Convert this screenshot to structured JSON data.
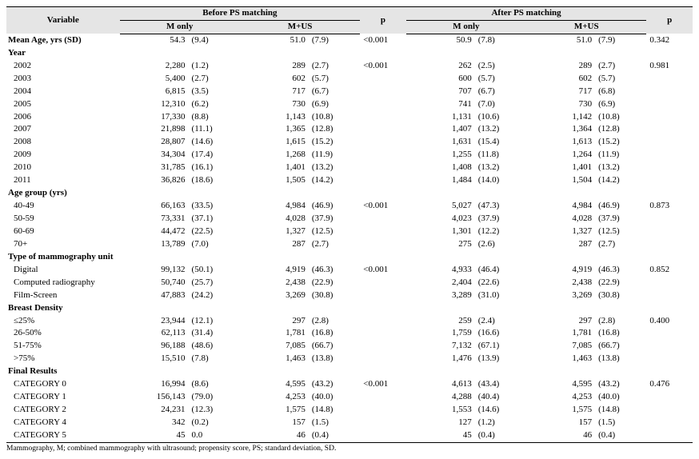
{
  "header": {
    "variable": "Variable",
    "before": "Before PS matching",
    "after": "After PS matching",
    "m_only": "M only",
    "m_us": "M+US",
    "p": "p"
  },
  "rows": [
    {
      "type": "data",
      "bold": true,
      "label": "Mean Age, yrs (SD)",
      "b_m_n": "54.3",
      "b_m_p": "(9.4)",
      "b_u_n": "51.0",
      "b_u_p": "(7.9)",
      "p1": "<0.001",
      "a_m_n": "50.9",
      "a_m_p": "(7.8)",
      "a_u_n": "51.0",
      "a_u_p": "(7.9)",
      "p2": "0.342"
    },
    {
      "type": "section",
      "label": "Year"
    },
    {
      "type": "data",
      "label": "2002",
      "b_m_n": "2,280",
      "b_m_p": "(1.2)",
      "b_u_n": "289",
      "b_u_p": "(2.7)",
      "p1": "<0.001",
      "a_m_n": "262",
      "a_m_p": "(2.5)",
      "a_u_n": "289",
      "a_u_p": "(2.7)",
      "p2": "0.981"
    },
    {
      "type": "data",
      "label": "2003",
      "b_m_n": "5,400",
      "b_m_p": "(2.7)",
      "b_u_n": "602",
      "b_u_p": "(5.7)",
      "p1": "",
      "a_m_n": "600",
      "a_m_p": "(5.7)",
      "a_u_n": "602",
      "a_u_p": "(5.7)",
      "p2": ""
    },
    {
      "type": "data",
      "label": "2004",
      "b_m_n": "6,815",
      "b_m_p": "(3.5)",
      "b_u_n": "717",
      "b_u_p": "(6.7)",
      "p1": "",
      "a_m_n": "707",
      "a_m_p": "(6.7)",
      "a_u_n": "717",
      "a_u_p": "(6.8)",
      "p2": ""
    },
    {
      "type": "data",
      "label": "2005",
      "b_m_n": "12,310",
      "b_m_p": "(6.2)",
      "b_u_n": "730",
      "b_u_p": "(6.9)",
      "p1": "",
      "a_m_n": "741",
      "a_m_p": "(7.0)",
      "a_u_n": "730",
      "a_u_p": "(6.9)",
      "p2": ""
    },
    {
      "type": "data",
      "label": "2006",
      "b_m_n": "17,330",
      "b_m_p": "(8.8)",
      "b_u_n": "1,143",
      "b_u_p": "(10.8)",
      "p1": "",
      "a_m_n": "1,131",
      "a_m_p": "(10.6)",
      "a_u_n": "1,142",
      "a_u_p": "(10.8)",
      "p2": ""
    },
    {
      "type": "data",
      "label": "2007",
      "b_m_n": "21,898",
      "b_m_p": "(11.1)",
      "b_u_n": "1,365",
      "b_u_p": "(12.8)",
      "p1": "",
      "a_m_n": "1,407",
      "a_m_p": "(13.2)",
      "a_u_n": "1,364",
      "a_u_p": "(12.8)",
      "p2": ""
    },
    {
      "type": "data",
      "label": "2008",
      "b_m_n": "28,807",
      "b_m_p": "(14.6)",
      "b_u_n": "1,615",
      "b_u_p": "(15.2)",
      "p1": "",
      "a_m_n": "1,631",
      "a_m_p": "(15.4)",
      "a_u_n": "1,613",
      "a_u_p": "(15.2)",
      "p2": ""
    },
    {
      "type": "data",
      "label": "2009",
      "b_m_n": "34,304",
      "b_m_p": "(17.4)",
      "b_u_n": "1,268",
      "b_u_p": "(11.9)",
      "p1": "",
      "a_m_n": "1,255",
      "a_m_p": "(11.8)",
      "a_u_n": "1,264",
      "a_u_p": "(11.9)",
      "p2": ""
    },
    {
      "type": "data",
      "label": "2010",
      "b_m_n": "31,785",
      "b_m_p": "(16.1)",
      "b_u_n": "1,401",
      "b_u_p": "(13.2)",
      "p1": "",
      "a_m_n": "1,408",
      "a_m_p": "(13.2)",
      "a_u_n": "1,401",
      "a_u_p": "(13.2)",
      "p2": ""
    },
    {
      "type": "data",
      "label": "2011",
      "b_m_n": "36,826",
      "b_m_p": "(18.6)",
      "b_u_n": "1,505",
      "b_u_p": "(14.2)",
      "p1": "",
      "a_m_n": "1,484",
      "a_m_p": "(14.0)",
      "a_u_n": "1,504",
      "a_u_p": "(14.2)",
      "p2": ""
    },
    {
      "type": "section",
      "label": "Age group (yrs)"
    },
    {
      "type": "data",
      "label": "40-49",
      "b_m_n": "66,163",
      "b_m_p": "(33.5)",
      "b_u_n": "4,984",
      "b_u_p": "(46.9)",
      "p1": "<0.001",
      "a_m_n": "5,027",
      "a_m_p": "(47.3)",
      "a_u_n": "4,984",
      "a_u_p": "(46.9)",
      "p2": "0.873"
    },
    {
      "type": "data",
      "label": "50-59",
      "b_m_n": "73,331",
      "b_m_p": "(37.1)",
      "b_u_n": "4,028",
      "b_u_p": "(37.9)",
      "p1": "",
      "a_m_n": "4,023",
      "a_m_p": "(37.9)",
      "a_u_n": "4,028",
      "a_u_p": "(37.9)",
      "p2": ""
    },
    {
      "type": "data",
      "label": "60-69",
      "b_m_n": "44,472",
      "b_m_p": "(22.5)",
      "b_u_n": "1,327",
      "b_u_p": "(12.5)",
      "p1": "",
      "a_m_n": "1,301",
      "a_m_p": "(12.2)",
      "a_u_n": "1,327",
      "a_u_p": "(12.5)",
      "p2": ""
    },
    {
      "type": "data",
      "label": "70+",
      "b_m_n": "13,789",
      "b_m_p": "(7.0)",
      "b_u_n": "287",
      "b_u_p": "(2.7)",
      "p1": "",
      "a_m_n": "275",
      "a_m_p": "(2.6)",
      "a_u_n": "287",
      "a_u_p": "(2.7)",
      "p2": ""
    },
    {
      "type": "section",
      "label": "Type of mammography unit"
    },
    {
      "type": "data",
      "label": "Digital",
      "b_m_n": "99,132",
      "b_m_p": "(50.1)",
      "b_u_n": "4,919",
      "b_u_p": "(46.3)",
      "p1": "<0.001",
      "a_m_n": "4,933",
      "a_m_p": "(46.4)",
      "a_u_n": "4,919",
      "a_u_p": "(46.3)",
      "p2": "0.852"
    },
    {
      "type": "data",
      "label": "Computed radiography",
      "b_m_n": "50,740",
      "b_m_p": "(25.7)",
      "b_u_n": "2,438",
      "b_u_p": "(22.9)",
      "p1": "",
      "a_m_n": "2,404",
      "a_m_p": "(22.6)",
      "a_u_n": "2,438",
      "a_u_p": "(22.9)",
      "p2": ""
    },
    {
      "type": "data",
      "label": "Film-Screen",
      "b_m_n": "47,883",
      "b_m_p": "(24.2)",
      "b_u_n": "3,269",
      "b_u_p": "(30.8)",
      "p1": "",
      "a_m_n": "3,289",
      "a_m_p": "(31.0)",
      "a_u_n": "3,269",
      "a_u_p": "(30.8)",
      "p2": ""
    },
    {
      "type": "section",
      "label": "Breast Density"
    },
    {
      "type": "data",
      "label": "≤25%",
      "b_m_n": "23,944",
      "b_m_p": "(12.1)",
      "b_u_n": "297",
      "b_u_p": "(2.8)",
      "p1": "",
      "a_m_n": "259",
      "a_m_p": "(2.4)",
      "a_u_n": "297",
      "a_u_p": "(2.8)",
      "p2": "0.400"
    },
    {
      "type": "data",
      "label": "26-50%",
      "b_m_n": "62,113",
      "b_m_p": "(31.4)",
      "b_u_n": "1,781",
      "b_u_p": "(16.8)",
      "p1": "",
      "a_m_n": "1,759",
      "a_m_p": "(16.6)",
      "a_u_n": "1,781",
      "a_u_p": "(16.8)",
      "p2": ""
    },
    {
      "type": "data",
      "label": "51-75%",
      "b_m_n": "96,188",
      "b_m_p": "(48.6)",
      "b_u_n": "7,085",
      "b_u_p": "(66.7)",
      "p1": "",
      "a_m_n": "7,132",
      "a_m_p": "(67.1)",
      "a_u_n": "7,085",
      "a_u_p": "(66.7)",
      "p2": ""
    },
    {
      "type": "data",
      "label": ">75%",
      "b_m_n": "15,510",
      "b_m_p": "(7.8)",
      "b_u_n": "1,463",
      "b_u_p": "(13.8)",
      "p1": "",
      "a_m_n": "1,476",
      "a_m_p": "(13.9)",
      "a_u_n": "1,463",
      "a_u_p": "(13.8)",
      "p2": ""
    },
    {
      "type": "section",
      "label": "Final Results"
    },
    {
      "type": "data",
      "label": "CATEGORY 0",
      "b_m_n": "16,994",
      "b_m_p": "(8.6)",
      "b_u_n": "4,595",
      "b_u_p": "(43.2)",
      "p1": "<0.001",
      "a_m_n": "4,613",
      "a_m_p": "(43.4)",
      "a_u_n": "4,595",
      "a_u_p": "(43.2)",
      "p2": "0.476"
    },
    {
      "type": "data",
      "label": "CATEGORY 1",
      "b_m_n": "156,143",
      "b_m_p": "(79.0)",
      "b_u_n": "4,253",
      "b_u_p": "(40.0)",
      "p1": "",
      "a_m_n": "4,288",
      "a_m_p": "(40.4)",
      "a_u_n": "4,253",
      "a_u_p": "(40.0)",
      "p2": ""
    },
    {
      "type": "data",
      "label": "CATEGORY 2",
      "b_m_n": "24,231",
      "b_m_p": "(12.3)",
      "b_u_n": "1,575",
      "b_u_p": "(14.8)",
      "p1": "",
      "a_m_n": "1,553",
      "a_m_p": "(14.6)",
      "a_u_n": "1,575",
      "a_u_p": "(14.8)",
      "p2": ""
    },
    {
      "type": "data",
      "label": "CATEGORY 4",
      "b_m_n": "342",
      "b_m_p": "(0.2)",
      "b_u_n": "157",
      "b_u_p": "(1.5)",
      "p1": "",
      "a_m_n": "127",
      "a_m_p": "(1.2)",
      "a_u_n": "157",
      "a_u_p": "(1.5)",
      "p2": ""
    },
    {
      "type": "data",
      "last": true,
      "label": "CATEGORY 5",
      "b_m_n": "45",
      "b_m_p": "0.0",
      "b_u_n": "46",
      "b_u_p": "(0.4)",
      "p1": "",
      "a_m_n": "45",
      "a_m_p": "(0.4)",
      "a_u_n": "46",
      "a_u_p": "(0.4)",
      "p2": ""
    }
  ],
  "footnote": "Mammography, M; combined mammography with ultrasound; propensity score, PS; standard deviation, SD."
}
